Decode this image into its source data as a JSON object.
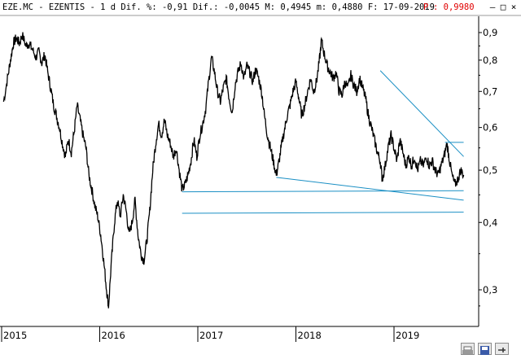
{
  "header": {
    "text": "EZE.MC - EZENTIS -  1 d Dif. %: -0,91 Dif.: -0,0045 M: 0,4945 m: 0,4880 F: 17-09-2019",
    "p_label": "P",
    "p_value": ": 0,9980"
  },
  "window_buttons": [
    "minimize-icon",
    "maximize-icon",
    "close-icon"
  ],
  "toolbar_buttons": [
    "print-icon",
    "save-icon",
    "pin-icon"
  ],
  "colors": {
    "price": "#000000",
    "trendline": "#1a8fc4",
    "axis": "#000000",
    "p_marker": "#e00000"
  },
  "chart_data": {
    "type": "line",
    "scale": "log",
    "ylim": [
      0.26,
      0.95
    ],
    "yticks": [
      "0,9",
      "0,8",
      "0,7",
      "0,6",
      "0,5",
      "0,4",
      "0,3"
    ],
    "ytick_values": [
      0.9,
      0.8,
      0.7,
      0.6,
      0.5,
      0.4,
      0.3
    ],
    "xticks": [
      "2015",
      "2016",
      "2017",
      "2018",
      "2019"
    ],
    "xtick_values": [
      2015.0,
      2016.0,
      2017.0,
      2018.0,
      2019.0
    ],
    "xlim": [
      2015.0,
      2019.85
    ],
    "grid": false,
    "series": [
      {
        "values": [
          [
            2015.02,
            0.67
          ],
          [
            2015.06,
            0.74
          ],
          [
            2015.09,
            0.8
          ],
          [
            2015.12,
            0.86
          ],
          [
            2015.15,
            0.88
          ],
          [
            2015.18,
            0.86
          ],
          [
            2015.21,
            0.89
          ],
          [
            2015.25,
            0.85
          ],
          [
            2015.28,
            0.86
          ],
          [
            2015.31,
            0.84
          ],
          [
            2015.35,
            0.81
          ],
          [
            2015.38,
            0.83
          ],
          [
            2015.41,
            0.79
          ],
          [
            2015.44,
            0.82
          ],
          [
            2015.47,
            0.76
          ],
          [
            2015.5,
            0.71
          ],
          [
            2015.53,
            0.66
          ],
          [
            2015.56,
            0.63
          ],
          [
            2015.59,
            0.6
          ],
          [
            2015.62,
            0.56
          ],
          [
            2015.65,
            0.53
          ],
          [
            2015.68,
            0.57
          ],
          [
            2015.71,
            0.54
          ],
          [
            2015.74,
            0.59
          ],
          [
            2015.77,
            0.66
          ],
          [
            2015.8,
            0.62
          ],
          [
            2015.83,
            0.58
          ],
          [
            2015.86,
            0.55
          ],
          [
            2015.89,
            0.49
          ],
          [
            2015.92,
            0.46
          ],
          [
            2015.95,
            0.43
          ],
          [
            2015.98,
            0.41
          ],
          [
            2016.01,
            0.38
          ],
          [
            2016.04,
            0.34
          ],
          [
            2016.07,
            0.3
          ],
          [
            2016.09,
            0.28
          ],
          [
            2016.12,
            0.34
          ],
          [
            2016.15,
            0.4
          ],
          [
            2016.18,
            0.44
          ],
          [
            2016.21,
            0.41
          ],
          [
            2016.24,
            0.45
          ],
          [
            2016.27,
            0.42
          ],
          [
            2016.3,
            0.38
          ],
          [
            2016.33,
            0.4
          ],
          [
            2016.36,
            0.44
          ],
          [
            2016.39,
            0.38
          ],
          [
            2016.42,
            0.35
          ],
          [
            2016.45,
            0.34
          ],
          [
            2016.48,
            0.37
          ],
          [
            2016.51,
            0.42
          ],
          [
            2016.54,
            0.5
          ],
          [
            2016.57,
            0.56
          ],
          [
            2016.6,
            0.61
          ],
          [
            2016.63,
            0.58
          ],
          [
            2016.66,
            0.62
          ],
          [
            2016.69,
            0.58
          ],
          [
            2016.72,
            0.56
          ],
          [
            2016.75,
            0.53
          ],
          [
            2016.78,
            0.55
          ],
          [
            2016.81,
            0.5
          ],
          [
            2016.84,
            0.46
          ],
          [
            2016.87,
            0.47
          ],
          [
            2016.9,
            0.49
          ],
          [
            2016.93,
            0.52
          ],
          [
            2016.96,
            0.57
          ],
          [
            2016.99,
            0.53
          ],
          [
            2017.02,
            0.58
          ],
          [
            2017.05,
            0.61
          ],
          [
            2017.08,
            0.65
          ],
          [
            2017.11,
            0.73
          ],
          [
            2017.14,
            0.81
          ],
          [
            2017.17,
            0.76
          ],
          [
            2017.2,
            0.7
          ],
          [
            2017.23,
            0.67
          ],
          [
            2017.26,
            0.71
          ],
          [
            2017.29,
            0.74
          ],
          [
            2017.32,
            0.68
          ],
          [
            2017.35,
            0.64
          ],
          [
            2017.38,
            0.72
          ],
          [
            2017.41,
            0.76
          ],
          [
            2017.44,
            0.79
          ],
          [
            2017.47,
            0.74
          ],
          [
            2017.5,
            0.78
          ],
          [
            2017.53,
            0.76
          ],
          [
            2017.56,
            0.73
          ],
          [
            2017.59,
            0.77
          ],
          [
            2017.62,
            0.74
          ],
          [
            2017.65,
            0.7
          ],
          [
            2017.68,
            0.63
          ],
          [
            2017.71,
            0.58
          ],
          [
            2017.74,
            0.55
          ],
          [
            2017.77,
            0.52
          ],
          [
            2017.8,
            0.49
          ],
          [
            2017.82,
            0.51
          ],
          [
            2017.85,
            0.55
          ],
          [
            2017.88,
            0.59
          ],
          [
            2017.91,
            0.63
          ],
          [
            2017.94,
            0.66
          ],
          [
            2017.97,
            0.7
          ],
          [
            2018.0,
            0.73
          ],
          [
            2018.03,
            0.68
          ],
          [
            2018.06,
            0.63
          ],
          [
            2018.09,
            0.66
          ],
          [
            2018.12,
            0.7
          ],
          [
            2018.15,
            0.74
          ],
          [
            2018.18,
            0.7
          ],
          [
            2018.21,
            0.73
          ],
          [
            2018.24,
            0.8
          ],
          [
            2018.26,
            0.87
          ],
          [
            2018.29,
            0.82
          ],
          [
            2018.32,
            0.78
          ],
          [
            2018.35,
            0.76
          ],
          [
            2018.38,
            0.74
          ],
          [
            2018.41,
            0.76
          ],
          [
            2018.44,
            0.7
          ],
          [
            2018.47,
            0.69
          ],
          [
            2018.5,
            0.73
          ],
          [
            2018.53,
            0.71
          ],
          [
            2018.56,
            0.75
          ],
          [
            2018.59,
            0.72
          ],
          [
            2018.62,
            0.7
          ],
          [
            2018.65,
            0.74
          ],
          [
            2018.68,
            0.71
          ],
          [
            2018.71,
            0.68
          ],
          [
            2018.74,
            0.63
          ],
          [
            2018.77,
            0.6
          ],
          [
            2018.8,
            0.57
          ],
          [
            2018.83,
            0.54
          ],
          [
            2018.86,
            0.52
          ],
          [
            2018.88,
            0.48
          ],
          [
            2018.91,
            0.51
          ],
          [
            2018.94,
            0.55
          ],
          [
            2018.97,
            0.58
          ],
          [
            2019.0,
            0.55
          ],
          [
            2019.03,
            0.52
          ],
          [
            2019.06,
            0.57
          ],
          [
            2019.09,
            0.54
          ],
          [
            2019.12,
            0.51
          ],
          [
            2019.15,
            0.53
          ],
          [
            2019.18,
            0.51
          ],
          [
            2019.21,
            0.53
          ],
          [
            2019.24,
            0.5
          ],
          [
            2019.27,
            0.52
          ],
          [
            2019.3,
            0.51
          ],
          [
            2019.33,
            0.53
          ],
          [
            2019.36,
            0.51
          ],
          [
            2019.39,
            0.52
          ],
          [
            2019.42,
            0.5
          ],
          [
            2019.45,
            0.49
          ],
          [
            2019.48,
            0.51
          ],
          [
            2019.51,
            0.53
          ],
          [
            2019.54,
            0.56
          ],
          [
            2019.56,
            0.53
          ],
          [
            2019.59,
            0.49
          ],
          [
            2019.62,
            0.47
          ],
          [
            2019.65,
            0.48
          ],
          [
            2019.68,
            0.5
          ],
          [
            2019.71,
            0.49
          ]
        ]
      }
    ],
    "trendlines": [
      [
        [
          2018.86,
          0.765
        ],
        [
          2019.71,
          0.53
        ]
      ],
      [
        [
          2017.8,
          0.485
        ],
        [
          2019.71,
          0.44
        ]
      ],
      [
        [
          2016.84,
          0.456
        ],
        [
          2019.71,
          0.458
        ]
      ],
      [
        [
          2016.84,
          0.416
        ],
        [
          2019.71,
          0.418
        ]
      ],
      [
        [
          2019.52,
          0.563
        ],
        [
          2019.71,
          0.563
        ]
      ]
    ]
  }
}
